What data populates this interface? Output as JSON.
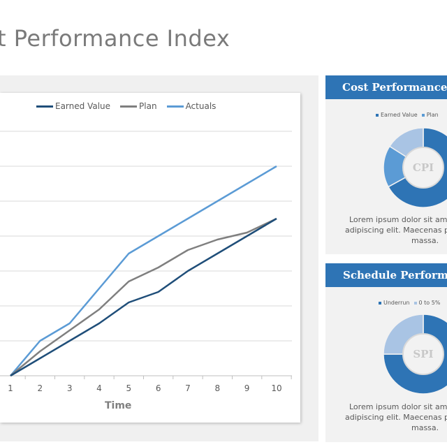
{
  "page": {
    "title": "t Performance Index"
  },
  "colors": {
    "accent": "#2e74b5",
    "earned_value": "#1f4e79",
    "plan": "#7f7f7f",
    "actuals": "#5b9bd5",
    "pie_dark": "#2e74b5",
    "pie_mid": "#5b9bd5",
    "pie_light": "#a9c4e4"
  },
  "cost_panel": {
    "header": "Cost Performance",
    "center_label": "CPI",
    "text_lines": [
      "Lorem ipsum dolor sit amet,",
      "adipiscing elit. Maecenas po",
      "massa."
    ]
  },
  "schedule_panel": {
    "header": "Schedule Performance",
    "center_label": "SPI",
    "text_lines": [
      "Lorem ipsum dolor sit amet,",
      "adipiscing elit. Maecenas po",
      "massa."
    ]
  },
  "chart_data": [
    {
      "type": "line",
      "xlabel": "Time",
      "x": [
        1,
        2,
        3,
        4,
        5,
        6,
        7,
        8,
        9,
        10
      ],
      "ylim": [
        0,
        7
      ],
      "grid": true,
      "legend": "top",
      "series": [
        {
          "name": "Earned Value",
          "values": [
            0,
            0.5,
            1.0,
            1.5,
            2.1,
            2.4,
            3.0,
            3.5,
            4.0,
            4.5
          ]
        },
        {
          "name": "Plan",
          "values": [
            0,
            0.7,
            1.3,
            1.9,
            2.7,
            3.1,
            3.6,
            3.9,
            4.1,
            4.5
          ]
        },
        {
          "name": "Actuals",
          "values": [
            0,
            1.0,
            1.5,
            2.5,
            3.5,
            4.0,
            4.5,
            5.0,
            5.5,
            6.0
          ]
        }
      ]
    },
    {
      "type": "pie",
      "title": "CPI",
      "legend_entries": [
        "Earned Value",
        "Plan"
      ],
      "values": [
        67,
        17,
        16
      ]
    },
    {
      "type": "pie",
      "title": "SPI",
      "legend_entries": [
        "Underrun",
        "0 to 5%"
      ],
      "values": [
        75,
        25
      ]
    }
  ]
}
